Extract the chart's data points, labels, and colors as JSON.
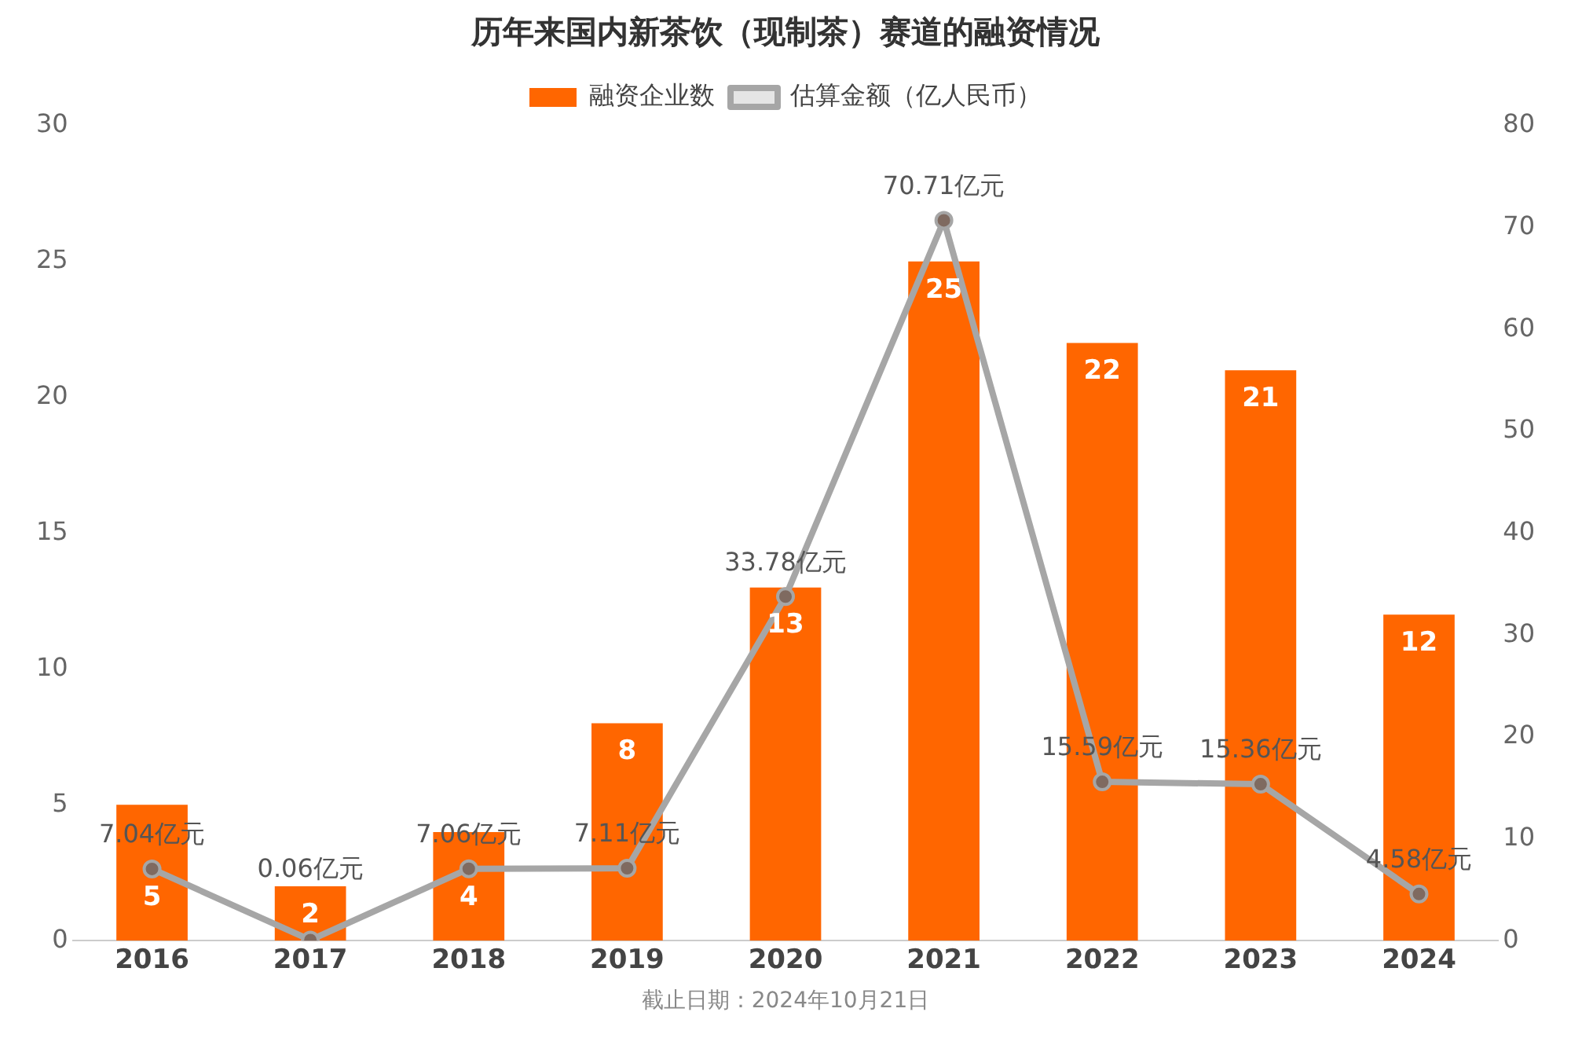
{
  "chart_data": {
    "type": "bar",
    "title": "历年来国内新茶饮（现制茶）赛道的融资情况",
    "categories": [
      "2016",
      "2017",
      "2018",
      "2019",
      "2020",
      "2021",
      "2022",
      "2023",
      "2024"
    ],
    "series": [
      {
        "name": "融资企业数",
        "color": "#ff6600",
        "values": [
          5,
          2,
          4,
          8,
          13,
          25,
          22,
          21,
          12
        ],
        "value_labels": [
          "5",
          "2",
          "4",
          "8",
          "13",
          "25",
          "22",
          "21",
          "12"
        ]
      },
      {
        "name": "估算金额（亿人民币）",
        "type": "line",
        "axis": "y2",
        "color": "#a6a6a6",
        "values": [
          7.04,
          0.06,
          7.06,
          7.11,
          33.78,
          70.71,
          15.59,
          15.36,
          4.58
        ],
        "value_labels": [
          "7.04亿元",
          "0.06亿元",
          "7.06亿元",
          "7.11亿元",
          "33.78亿元",
          "70.71亿元",
          "15.59亿元",
          "15.36亿元",
          "4.58亿元"
        ]
      }
    ],
    "ylim": [
      0,
      30
    ],
    "yticks": [
      0,
      5,
      10,
      15,
      20,
      25,
      30
    ],
    "y2lim": [
      0,
      80
    ],
    "y2ticks": [
      0,
      10,
      20,
      30,
      40,
      50,
      60,
      70,
      80
    ],
    "grid": false,
    "legend": "top",
    "marker": "circle",
    "line_style": "solid",
    "annotations": [
      "截止日期：2024年10月21日"
    ]
  }
}
